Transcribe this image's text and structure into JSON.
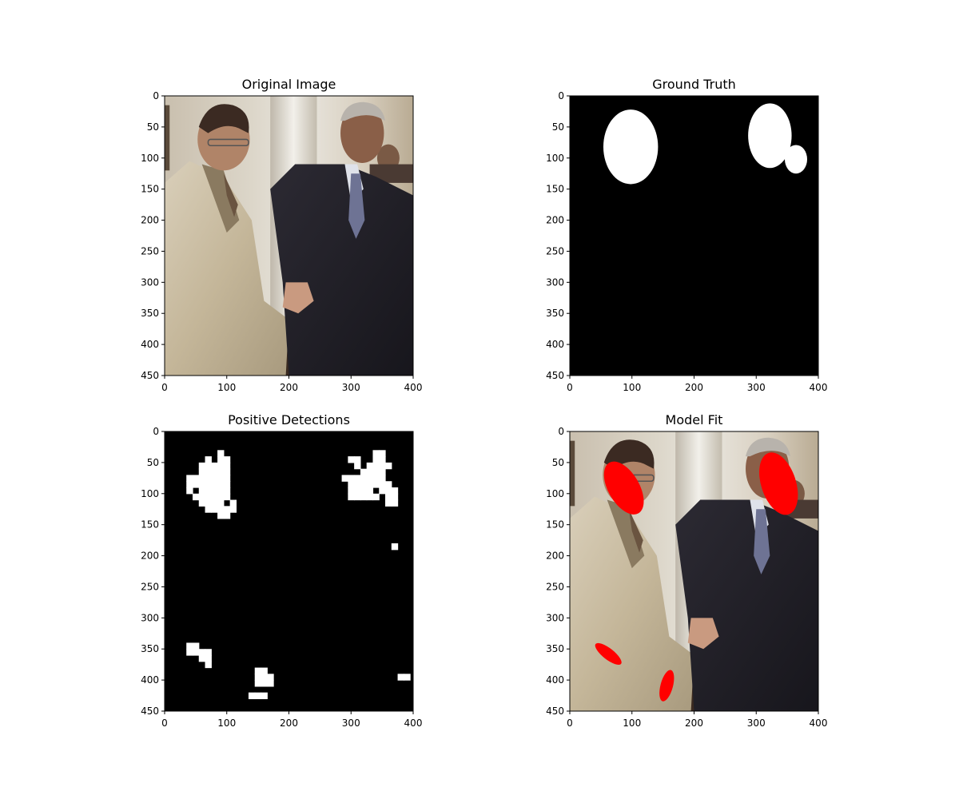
{
  "chart_data": [
    {
      "type": "image",
      "title": "Original Image",
      "xlim": [
        0,
        400
      ],
      "ylim": [
        450,
        0
      ],
      "xticks": [
        0,
        100,
        200,
        300,
        400
      ],
      "yticks": [
        0,
        50,
        100,
        150,
        200,
        250,
        300,
        350,
        400,
        450
      ],
      "content": "photo",
      "overlays": []
    },
    {
      "type": "image",
      "title": "Ground Truth",
      "xlim": [
        0,
        400
      ],
      "ylim": [
        450,
        0
      ],
      "xticks": [
        0,
        100,
        200,
        300,
        400
      ],
      "yticks": [
        0,
        50,
        100,
        150,
        200,
        250,
        300,
        350,
        400,
        450
      ],
      "content": "mask",
      "overlays": [
        {
          "shape": "ellipse",
          "cx": 98,
          "cy": 82,
          "rx": 44,
          "ry": 60,
          "rotate": 0,
          "color": "#ffffff"
        },
        {
          "shape": "ellipse",
          "cx": 322,
          "cy": 64,
          "rx": 35,
          "ry": 52,
          "rotate": 0,
          "color": "#ffffff"
        },
        {
          "shape": "ellipse",
          "cx": 364,
          "cy": 102,
          "rx": 18,
          "ry": 23,
          "rotate": 0,
          "color": "#ffffff"
        }
      ]
    },
    {
      "type": "image",
      "title": "Positive Detections",
      "xlim": [
        0,
        400
      ],
      "ylim": [
        450,
        0
      ],
      "xticks": [
        0,
        100,
        200,
        300,
        400
      ],
      "yticks": [
        0,
        50,
        100,
        150,
        200,
        250,
        300,
        350,
        400,
        450
      ],
      "content": "mask",
      "cell_size": 10,
      "cells": [
        [
          90,
          35
        ],
        [
          70,
          45
        ],
        [
          90,
          45
        ],
        [
          100,
          45
        ],
        [
          60,
          55
        ],
        [
          70,
          55
        ],
        [
          80,
          55
        ],
        [
          90,
          55
        ],
        [
          100,
          55
        ],
        [
          60,
          65
        ],
        [
          70,
          65
        ],
        [
          80,
          65
        ],
        [
          90,
          65
        ],
        [
          100,
          65
        ],
        [
          40,
          75
        ],
        [
          50,
          75
        ],
        [
          60,
          75
        ],
        [
          70,
          75
        ],
        [
          80,
          75
        ],
        [
          90,
          75
        ],
        [
          100,
          75
        ],
        [
          40,
          85
        ],
        [
          50,
          85
        ],
        [
          60,
          85
        ],
        [
          70,
          85
        ],
        [
          80,
          85
        ],
        [
          90,
          85
        ],
        [
          100,
          85
        ],
        [
          40,
          95
        ],
        [
          60,
          95
        ],
        [
          70,
          95
        ],
        [
          80,
          95
        ],
        [
          90,
          95
        ],
        [
          100,
          95
        ],
        [
          50,
          105
        ],
        [
          60,
          105
        ],
        [
          70,
          105
        ],
        [
          80,
          105
        ],
        [
          90,
          105
        ],
        [
          100,
          105
        ],
        [
          60,
          115
        ],
        [
          70,
          115
        ],
        [
          80,
          115
        ],
        [
          90,
          115
        ],
        [
          110,
          115
        ],
        [
          70,
          125
        ],
        [
          80,
          125
        ],
        [
          90,
          125
        ],
        [
          100,
          125
        ],
        [
          110,
          125
        ],
        [
          90,
          135
        ],
        [
          100,
          135
        ],
        [
          340,
          35
        ],
        [
          350,
          35
        ],
        [
          300,
          45
        ],
        [
          310,
          45
        ],
        [
          340,
          45
        ],
        [
          350,
          45
        ],
        [
          310,
          55
        ],
        [
          330,
          55
        ],
        [
          340,
          55
        ],
        [
          350,
          55
        ],
        [
          360,
          55
        ],
        [
          320,
          65
        ],
        [
          330,
          65
        ],
        [
          340,
          65
        ],
        [
          350,
          65
        ],
        [
          290,
          75
        ],
        [
          300,
          75
        ],
        [
          310,
          75
        ],
        [
          320,
          75
        ],
        [
          330,
          75
        ],
        [
          340,
          75
        ],
        [
          350,
          75
        ],
        [
          300,
          85
        ],
        [
          310,
          85
        ],
        [
          320,
          85
        ],
        [
          330,
          85
        ],
        [
          340,
          85
        ],
        [
          350,
          85
        ],
        [
          360,
          85
        ],
        [
          300,
          95
        ],
        [
          310,
          95
        ],
        [
          320,
          95
        ],
        [
          330,
          95
        ],
        [
          350,
          95
        ],
        [
          360,
          95
        ],
        [
          370,
          95
        ],
        [
          300,
          105
        ],
        [
          310,
          105
        ],
        [
          320,
          105
        ],
        [
          330,
          105
        ],
        [
          340,
          105
        ],
        [
          360,
          105
        ],
        [
          370,
          105
        ],
        [
          360,
          115
        ],
        [
          370,
          115
        ],
        [
          370,
          185
        ],
        [
          40,
          345
        ],
        [
          50,
          345
        ],
        [
          40,
          355
        ],
        [
          50,
          355
        ],
        [
          60,
          355
        ],
        [
          70,
          355
        ],
        [
          60,
          365
        ],
        [
          70,
          365
        ],
        [
          70,
          375
        ],
        [
          150,
          385
        ],
        [
          160,
          385
        ],
        [
          150,
          395
        ],
        [
          160,
          395
        ],
        [
          170,
          395
        ],
        [
          150,
          405
        ],
        [
          160,
          405
        ],
        [
          170,
          405
        ],
        [
          140,
          425
        ],
        [
          150,
          425
        ],
        [
          160,
          425
        ],
        [
          380,
          395
        ],
        [
          390,
          395
        ]
      ],
      "overlays": []
    },
    {
      "type": "image",
      "title": "Model Fit",
      "xlim": [
        0,
        400
      ],
      "ylim": [
        450,
        0
      ],
      "xticks": [
        0,
        100,
        200,
        300,
        400
      ],
      "yticks": [
        0,
        50,
        100,
        150,
        200,
        250,
        300,
        350,
        400,
        450
      ],
      "content": "photo",
      "overlays": [
        {
          "shape": "ellipse",
          "cx": 87,
          "cy": 91,
          "rx": 25,
          "ry": 47,
          "rotate": -30,
          "color": "#ff0000"
        },
        {
          "shape": "ellipse",
          "cx": 336,
          "cy": 84,
          "rx": 28,
          "ry": 52,
          "rotate": -18,
          "color": "#ff0000"
        },
        {
          "shape": "ellipse",
          "cx": 62,
          "cy": 358,
          "rx": 9,
          "ry": 26,
          "rotate": -52,
          "color": "#ff0000"
        },
        {
          "shape": "ellipse",
          "cx": 156,
          "cy": 409,
          "rx": 10,
          "ry": 26,
          "rotate": 15,
          "color": "#ff0000"
        }
      ]
    }
  ]
}
